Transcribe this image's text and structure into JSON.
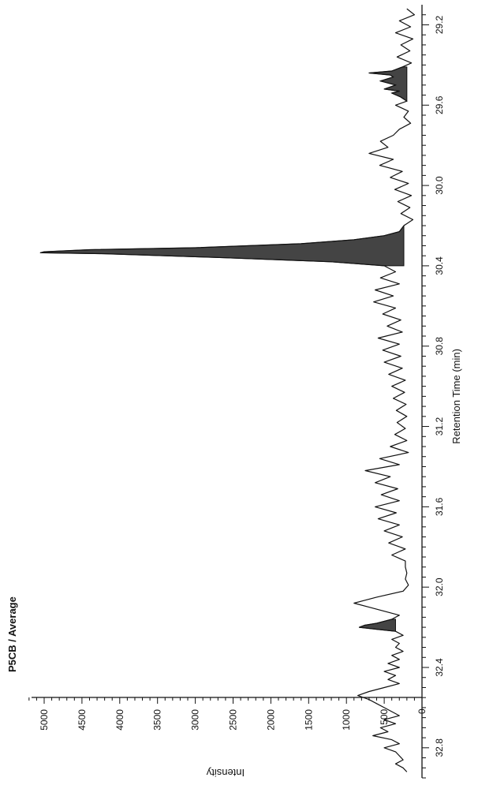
{
  "chart_data": {
    "type": "line",
    "title": "P5CB / Average",
    "xlabel": "Retention Time (min)",
    "ylabel": "Intensity",
    "xlim": [
      29.1,
      32.95
    ],
    "ylim": [
      -50,
      5200
    ],
    "x_ticks": [
      29.2,
      29.6,
      30.0,
      30.4,
      30.8,
      31.2,
      31.6,
      32.0,
      32.4,
      32.8
    ],
    "x_tick_labels": [
      "29.2",
      "29.6",
      "30.0",
      "30.4",
      "30.8",
      "31.2",
      "31.6",
      "32.0",
      "32.4",
      "32.8"
    ],
    "y_ticks": [
      0,
      500,
      1000,
      1500,
      2000,
      2500,
      3000,
      3500,
      4000,
      4500,
      5000
    ],
    "y_tick_labels": [
      "0",
      "500",
      "1000",
      "1500",
      "2000",
      "2500",
      "3000",
      "3500",
      "4000",
      "4500",
      "5000"
    ],
    "grid": false,
    "series": [
      {
        "x": [
          29.12,
          29.15,
          29.18,
          29.21,
          29.24,
          29.27,
          29.3,
          29.33,
          29.36,
          29.39,
          29.41,
          29.43,
          29.44,
          29.45,
          29.46,
          29.48,
          29.5,
          29.52,
          29.53,
          29.54,
          29.56,
          29.58,
          29.6,
          29.63,
          29.66,
          29.69,
          29.72,
          29.75,
          29.78,
          29.81,
          29.84,
          29.87,
          29.9,
          29.93,
          29.96,
          29.99,
          30.02,
          30.05,
          30.08,
          30.11,
          30.14,
          30.17,
          30.2,
          30.23,
          30.25,
          30.27,
          30.29,
          30.31,
          30.32,
          30.33,
          30.335,
          30.34,
          30.36,
          30.38,
          30.4,
          30.43,
          30.46,
          30.49,
          30.52,
          30.55,
          30.58,
          30.61,
          30.64,
          30.67,
          30.7,
          30.73,
          30.76,
          30.79,
          30.82,
          30.85,
          30.88,
          30.91,
          30.94,
          30.97,
          31.0,
          31.03,
          31.06,
          31.09,
          31.12,
          31.15,
          31.18,
          31.21,
          31.24,
          31.27,
          31.3,
          31.33,
          31.36,
          31.39,
          31.42,
          31.45,
          31.48,
          31.51,
          31.54,
          31.57,
          31.6,
          31.63,
          31.66,
          31.69,
          31.72,
          31.75,
          31.78,
          31.81,
          31.84,
          31.87,
          31.9,
          31.93,
          31.96,
          31.99,
          32.02,
          32.05,
          32.08,
          32.1,
          32.12,
          32.14,
          32.16,
          32.18,
          32.19,
          32.2,
          32.21,
          32.22,
          32.24,
          32.26,
          32.28,
          32.3,
          32.32,
          32.34,
          32.36,
          32.38,
          32.4,
          32.42,
          32.44,
          32.46,
          32.48,
          32.5,
          32.52,
          32.54,
          32.56,
          32.58,
          32.6,
          32.62,
          32.64,
          32.66,
          32.68,
          32.7,
          32.72,
          32.74,
          32.76,
          32.78,
          32.8,
          32.82,
          32.84,
          32.86,
          32.88,
          32.9,
          32.92
        ],
        "y": [
          200,
          100,
          300,
          150,
          350,
          120,
          280,
          160,
          330,
          140,
          260,
          400,
          700,
          420,
          380,
          550,
          350,
          500,
          300,
          400,
          280,
          200,
          350,
          180,
          240,
          150,
          300,
          380,
          550,
          450,
          700,
          380,
          560,
          260,
          420,
          180,
          360,
          140,
          320,
          160,
          280,
          120,
          240,
          300,
          500,
          900,
          1600,
          3000,
          4400,
          5000,
          5050,
          4200,
          2600,
          1200,
          500,
          350,
          550,
          300,
          620,
          380,
          640,
          350,
          520,
          280,
          460,
          260,
          580,
          300,
          520,
          280,
          500,
          260,
          440,
          220,
          400,
          230,
          380,
          210,
          340,
          200,
          330,
          220,
          360,
          200,
          420,
          180,
          560,
          300,
          750,
          420,
          620,
          320,
          540,
          300,
          620,
          340,
          580,
          300,
          500,
          260,
          440,
          220,
          400,
          220,
          220,
          200,
          220,
          180,
          250,
          600,
          900,
          700,
          500,
          300,
          400,
          600,
          760,
          830,
          600,
          350,
          250,
          400,
          300,
          350,
          250,
          400,
          300,
          450,
          300,
          500,
          350,
          450,
          300,
          500,
          700,
          850,
          700,
          600,
          500,
          400,
          300,
          500,
          350,
          550,
          450,
          650,
          400,
          300,
          500,
          350,
          300,
          250,
          350,
          250,
          200
        ]
      }
    ],
    "shaded_peaks": [
      {
        "x": [
          29.41,
          29.43,
          29.44,
          29.45,
          29.46,
          29.48,
          29.5,
          29.52,
          29.53,
          29.54,
          29.56,
          29.58
        ],
        "y": [
          260,
          400,
          700,
          420,
          380,
          550,
          350,
          500,
          300,
          400,
          280,
          200
        ]
      },
      {
        "x": [
          30.2,
          30.23,
          30.25,
          30.27,
          30.29,
          30.31,
          30.32,
          30.33,
          30.335,
          30.34,
          30.36,
          30.38,
          30.4
        ],
        "y": [
          240,
          300,
          500,
          900,
          1600,
          3000,
          4400,
          5000,
          5050,
          4200,
          2600,
          1200,
          500
        ]
      },
      {
        "x": [
          32.16,
          32.18,
          32.19,
          32.2,
          32.21,
          32.22
        ],
        "y": [
          400,
          600,
          760,
          830,
          600,
          350
        ]
      }
    ],
    "colors": {
      "line": "#111111",
      "fill": "#444444",
      "axis": "#111111"
    }
  }
}
